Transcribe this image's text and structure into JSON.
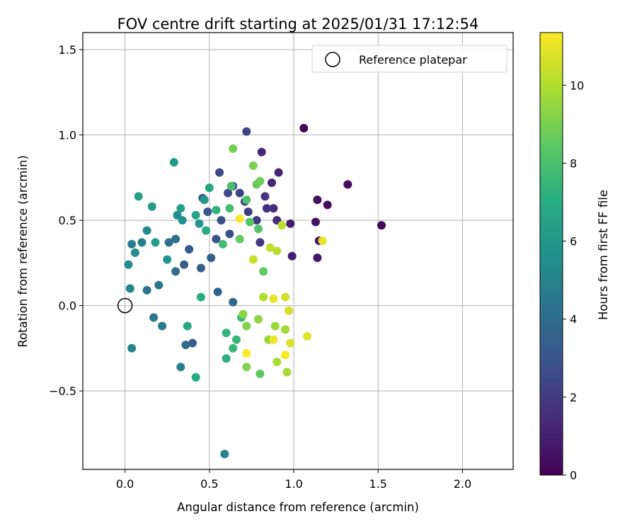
{
  "chart_data": {
    "type": "scatter",
    "title": "FOV centre drift starting at 2025/01/31 17:12:54",
    "xlabel": "Angular distance from reference (arcmin)",
    "ylabel": "Rotation from reference (arcmin)",
    "xlim": [
      -0.25,
      2.3
    ],
    "ylim": [
      -0.96,
      1.6
    ],
    "xticks": [
      "0.0",
      "0.5",
      "1.0",
      "1.5",
      "2.0"
    ],
    "yticks": [
      "−0.5",
      "0.0",
      "0.5",
      "1.0",
      "1.5"
    ],
    "grid": true,
    "legend": {
      "position": "top-right",
      "label": "Reference platepar",
      "marker": "open-circle"
    },
    "reference_point": {
      "x": 0.0,
      "y": 0.0
    },
    "colorbar": {
      "label": "Hours from first FF file",
      "range": [
        0,
        11.35
      ],
      "ticks": [
        "0",
        "2",
        "4",
        "6",
        "8",
        "10"
      ],
      "colormap": "viridis"
    },
    "series": [
      {
        "x_y_hours": [
          [
            1.06,
            1.04,
            0.1
          ],
          [
            1.52,
            0.47,
            0.2
          ],
          [
            1.32,
            0.71,
            0.3
          ],
          [
            1.2,
            0.59,
            0.4
          ],
          [
            1.14,
            0.62,
            0.5
          ],
          [
            1.13,
            0.49,
            0.6
          ],
          [
            1.15,
            0.38,
            0.7
          ],
          [
            1.14,
            0.28,
            0.8
          ],
          [
            0.98,
            0.48,
            0.9
          ],
          [
            0.99,
            0.29,
            1.0
          ],
          [
            0.91,
            0.78,
            1.1
          ],
          [
            0.87,
            0.72,
            1.2
          ],
          [
            0.81,
            0.9,
            1.3
          ],
          [
            0.9,
            0.5,
            1.4
          ],
          [
            0.88,
            0.57,
            1.5
          ],
          [
            0.84,
            0.57,
            1.6
          ],
          [
            0.83,
            0.64,
            1.7
          ],
          [
            0.8,
            0.37,
            1.8
          ],
          [
            0.78,
            0.5,
            1.9
          ],
          [
            0.73,
            0.55,
            2.0
          ],
          [
            0.71,
            0.61,
            2.1
          ],
          [
            0.68,
            0.66,
            2.2
          ],
          [
            0.72,
            1.02,
            2.3
          ],
          [
            0.64,
            0.7,
            2.4
          ],
          [
            0.56,
            0.78,
            2.5
          ],
          [
            0.61,
            0.66,
            2.6
          ],
          [
            0.57,
            0.5,
            2.7
          ],
          [
            0.62,
            0.42,
            2.8
          ],
          [
            0.54,
            0.39,
            2.9
          ],
          [
            0.46,
            0.63,
            3.0
          ],
          [
            0.49,
            0.55,
            3.1
          ],
          [
            0.38,
            0.33,
            3.2
          ],
          [
            0.35,
            0.24,
            3.3
          ],
          [
            0.4,
            -0.22,
            3.4
          ],
          [
            0.45,
            0.22,
            3.5
          ],
          [
            0.51,
            0.28,
            3.6
          ],
          [
            0.55,
            0.08,
            3.7
          ],
          [
            0.64,
            0.02,
            3.8
          ],
          [
            0.36,
            -0.23,
            3.9
          ],
          [
            0.3,
            0.2,
            4.0
          ],
          [
            0.26,
            0.37,
            4.1
          ],
          [
            0.3,
            0.39,
            4.2
          ],
          [
            0.13,
            0.09,
            4.3
          ],
          [
            0.2,
            0.12,
            4.4
          ],
          [
            0.17,
            -0.07,
            4.5
          ],
          [
            0.22,
            -0.12,
            4.6
          ],
          [
            0.04,
            0.36,
            4.7
          ],
          [
            0.1,
            0.37,
            4.8
          ],
          [
            0.33,
            -0.36,
            4.9
          ],
          [
            0.59,
            -0.87,
            5.0
          ],
          [
            0.04,
            -0.25,
            5.1
          ],
          [
            0.03,
            0.1,
            5.2
          ],
          [
            0.06,
            0.31,
            5.3
          ],
          [
            0.13,
            0.44,
            5.4
          ],
          [
            0.02,
            0.24,
            5.5
          ],
          [
            0.31,
            0.53,
            5.6
          ],
          [
            0.34,
            0.5,
            5.7
          ],
          [
            0.25,
            0.27,
            5.8
          ],
          [
            0.44,
            0.48,
            5.9
          ],
          [
            0.47,
            0.62,
            6.0
          ],
          [
            0.29,
            0.84,
            6.1
          ],
          [
            0.16,
            0.58,
            6.2
          ],
          [
            0.18,
            0.37,
            6.3
          ],
          [
            0.08,
            0.64,
            6.4
          ],
          [
            0.33,
            0.57,
            6.5
          ],
          [
            0.42,
            0.53,
            6.6
          ],
          [
            0.5,
            0.69,
            6.7
          ],
          [
            0.37,
            -0.12,
            6.8
          ],
          [
            0.42,
            -0.42,
            6.9
          ],
          [
            0.48,
            0.44,
            7.0
          ],
          [
            0.45,
            0.05,
            7.1
          ],
          [
            0.6,
            -0.31,
            7.2
          ],
          [
            0.54,
            0.56,
            7.3
          ],
          [
            0.6,
            -0.16,
            7.4
          ],
          [
            0.66,
            -0.2,
            7.5
          ],
          [
            0.64,
            -0.25,
            7.6
          ],
          [
            0.69,
            -0.07,
            7.7
          ],
          [
            0.58,
            0.36,
            7.8
          ],
          [
            0.62,
            0.57,
            7.9
          ],
          [
            0.63,
            0.7,
            8.0
          ],
          [
            0.72,
            0.62,
            8.1
          ],
          [
            0.79,
            0.45,
            8.2
          ],
          [
            0.74,
            0.49,
            8.3
          ],
          [
            0.8,
            -0.4,
            8.4
          ],
          [
            0.82,
            0.2,
            8.5
          ],
          [
            0.68,
            0.39,
            8.6
          ],
          [
            0.78,
            0.71,
            8.7
          ],
          [
            0.8,
            0.73,
            8.8
          ],
          [
            0.64,
            0.92,
            8.9
          ],
          [
            0.76,
            0.82,
            9.0
          ],
          [
            0.72,
            -0.36,
            9.1
          ],
          [
            0.72,
            -0.12,
            9.2
          ],
          [
            0.7,
            -0.05,
            9.3
          ],
          [
            0.79,
            -0.08,
            9.4
          ],
          [
            0.85,
            -0.2,
            9.5
          ],
          [
            0.89,
            -0.12,
            9.6
          ],
          [
            0.95,
            -0.14,
            9.7
          ],
          [
            0.96,
            -0.39,
            9.8
          ],
          [
            0.9,
            -0.33,
            9.9
          ],
          [
            0.82,
            0.05,
            10.0
          ],
          [
            0.9,
            0.32,
            10.1
          ],
          [
            0.93,
            0.47,
            10.2
          ],
          [
            0.86,
            0.34,
            10.3
          ],
          [
            0.76,
            0.27,
            10.4
          ],
          [
            0.95,
            0.05,
            10.5
          ],
          [
            0.97,
            -0.03,
            10.6
          ],
          [
            0.98,
            -0.22,
            10.7
          ],
          [
            1.08,
            -0.18,
            10.8
          ],
          [
            1.17,
            0.38,
            10.9
          ],
          [
            0.88,
            0.04,
            11.0
          ],
          [
            0.88,
            -0.2,
            11.1
          ],
          [
            0.95,
            -0.29,
            11.2
          ],
          [
            0.72,
            -0.28,
            11.3
          ],
          [
            0.68,
            0.51,
            11.3
          ]
        ]
      }
    ]
  }
}
